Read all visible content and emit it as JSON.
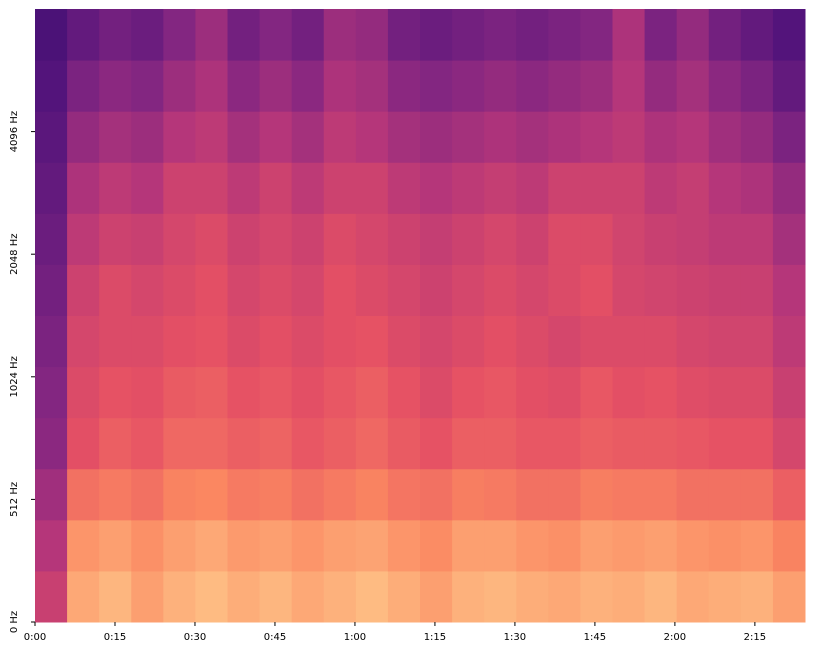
{
  "chart_data": {
    "type": "spectrogram",
    "xlim": [
      0,
      144.4
    ],
    "xticks": [
      {
        "value": 0,
        "label": "0:00"
      },
      {
        "value": 15,
        "label": "0:15"
      },
      {
        "value": 30,
        "label": "0:30"
      },
      {
        "value": 45,
        "label": "0:45"
      },
      {
        "value": 60,
        "label": "1:00"
      },
      {
        "value": 75,
        "label": "1:15"
      },
      {
        "value": 90,
        "label": "1:30"
      },
      {
        "value": 105,
        "label": "1:45"
      },
      {
        "value": 120,
        "label": "2:00"
      },
      {
        "value": 135,
        "label": "2:15"
      }
    ],
    "ylim": [
      0,
      8192
    ],
    "yscale": "symlog",
    "linthresh": 512,
    "yticks": [
      {
        "value": 0,
        "label": "0 Hz"
      },
      {
        "value": 512,
        "label": "512 Hz"
      },
      {
        "value": 1024,
        "label": "1024 Hz"
      },
      {
        "value": 2048,
        "label": "2048 Hz"
      },
      {
        "value": 4096,
        "label": "4096 Hz"
      }
    ],
    "colormap": "magma",
    "zlim": [
      0,
      1
    ],
    "z": [
      [
        0.55,
        0.82,
        0.85,
        0.8,
        0.84,
        0.86,
        0.83,
        0.85,
        0.82,
        0.84,
        0.86,
        0.83,
        0.8,
        0.84,
        0.85,
        0.83,
        0.82,
        0.84,
        0.83,
        0.85,
        0.82,
        0.83,
        0.84,
        0.8
      ],
      [
        0.5,
        0.78,
        0.8,
        0.77,
        0.8,
        0.82,
        0.79,
        0.8,
        0.78,
        0.8,
        0.81,
        0.78,
        0.76,
        0.8,
        0.8,
        0.78,
        0.77,
        0.8,
        0.79,
        0.8,
        0.78,
        0.77,
        0.78,
        0.74
      ],
      [
        0.45,
        0.7,
        0.72,
        0.7,
        0.74,
        0.75,
        0.72,
        0.73,
        0.7,
        0.72,
        0.74,
        0.71,
        0.7,
        0.73,
        0.72,
        0.7,
        0.7,
        0.73,
        0.72,
        0.72,
        0.7,
        0.7,
        0.7,
        0.66
      ],
      [
        0.4,
        0.62,
        0.66,
        0.64,
        0.68,
        0.68,
        0.66,
        0.67,
        0.64,
        0.66,
        0.68,
        0.65,
        0.63,
        0.66,
        0.66,
        0.64,
        0.64,
        0.66,
        0.65,
        0.65,
        0.64,
        0.63,
        0.63,
        0.58
      ],
      [
        0.38,
        0.6,
        0.63,
        0.62,
        0.65,
        0.66,
        0.63,
        0.64,
        0.62,
        0.64,
        0.66,
        0.63,
        0.6,
        0.63,
        0.64,
        0.62,
        0.61,
        0.64,
        0.62,
        0.63,
        0.61,
        0.6,
        0.6,
        0.55
      ],
      [
        0.36,
        0.58,
        0.6,
        0.6,
        0.62,
        0.63,
        0.6,
        0.62,
        0.6,
        0.62,
        0.63,
        0.6,
        0.58,
        0.6,
        0.62,
        0.6,
        0.58,
        0.6,
        0.6,
        0.6,
        0.58,
        0.57,
        0.57,
        0.52
      ],
      [
        0.34,
        0.56,
        0.6,
        0.58,
        0.6,
        0.62,
        0.58,
        0.6,
        0.58,
        0.62,
        0.6,
        0.58,
        0.56,
        0.58,
        0.6,
        0.58,
        0.6,
        0.62,
        0.58,
        0.57,
        0.56,
        0.55,
        0.55,
        0.5
      ],
      [
        0.32,
        0.52,
        0.56,
        0.55,
        0.58,
        0.6,
        0.56,
        0.58,
        0.56,
        0.6,
        0.58,
        0.56,
        0.54,
        0.56,
        0.58,
        0.56,
        0.6,
        0.6,
        0.57,
        0.55,
        0.54,
        0.52,
        0.52,
        0.46
      ],
      [
        0.3,
        0.48,
        0.52,
        0.5,
        0.56,
        0.56,
        0.52,
        0.56,
        0.52,
        0.56,
        0.56,
        0.52,
        0.5,
        0.52,
        0.54,
        0.52,
        0.56,
        0.56,
        0.56,
        0.52,
        0.54,
        0.5,
        0.48,
        0.42
      ],
      [
        0.28,
        0.42,
        0.46,
        0.44,
        0.5,
        0.52,
        0.46,
        0.5,
        0.46,
        0.52,
        0.5,
        0.46,
        0.44,
        0.46,
        0.48,
        0.46,
        0.48,
        0.5,
        0.52,
        0.48,
        0.5,
        0.45,
        0.42,
        0.36
      ],
      [
        0.26,
        0.36,
        0.4,
        0.38,
        0.44,
        0.48,
        0.4,
        0.44,
        0.4,
        0.48,
        0.46,
        0.4,
        0.38,
        0.4,
        0.42,
        0.4,
        0.42,
        0.44,
        0.5,
        0.42,
        0.46,
        0.4,
        0.36,
        0.3
      ],
      [
        0.24,
        0.3,
        0.34,
        0.32,
        0.38,
        0.44,
        0.34,
        0.38,
        0.34,
        0.44,
        0.42,
        0.34,
        0.32,
        0.34,
        0.36,
        0.34,
        0.36,
        0.38,
        0.48,
        0.36,
        0.42,
        0.34,
        0.3,
        0.26
      ]
    ]
  }
}
